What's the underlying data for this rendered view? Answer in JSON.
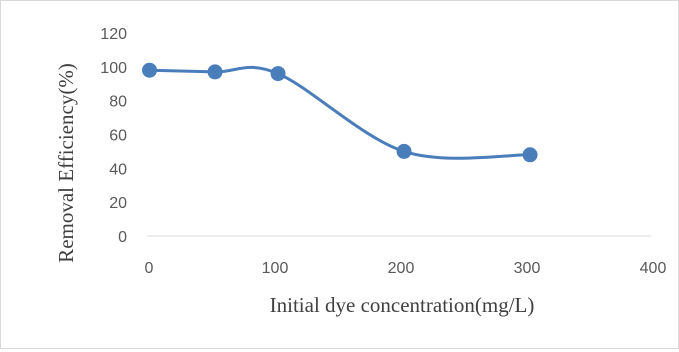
{
  "chart_data": {
    "type": "scatter",
    "mode": "smooth-line-with-markers",
    "title": "",
    "xlabel": "Initial dye concentration(mg/L)",
    "ylabel": "Removal Efficiency(%)",
    "xlim": [
      0,
      400
    ],
    "ylim": [
      0,
      120
    ],
    "xticks": [
      "0",
      "100",
      "200",
      "300",
      "400"
    ],
    "yticks": [
      "0",
      "20",
      "40",
      "60",
      "80",
      "100",
      "120"
    ],
    "grid": false,
    "legend": "none",
    "series": [
      {
        "color": "#4a7ebb",
        "points": [
          {
            "x": 2,
            "y": 98
          },
          {
            "x": 54,
            "y": 97
          },
          {
            "x": 104,
            "y": 96
          },
          {
            "x": 204,
            "y": 50
          },
          {
            "x": 304,
            "y": 48
          }
        ]
      }
    ]
  }
}
